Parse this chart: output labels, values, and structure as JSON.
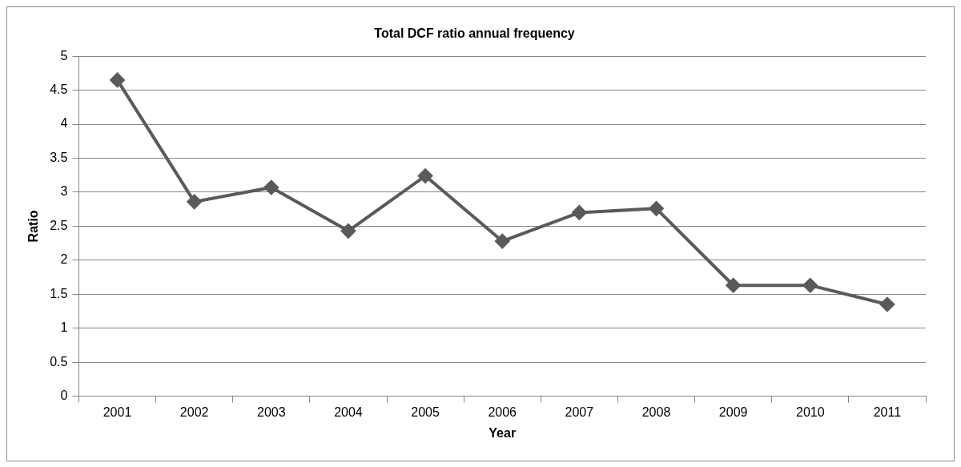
{
  "chart_data": {
    "type": "line",
    "title": "Total DCF ratio annual frequency",
    "xlabel": "Year",
    "ylabel": "Ratio",
    "categories": [
      "2001",
      "2002",
      "2003",
      "2004",
      "2005",
      "2006",
      "2007",
      "2008",
      "2009",
      "2010",
      "2011"
    ],
    "series": [
      {
        "color": "#5a5a5a",
        "values": [
          4.65,
          2.86,
          3.07,
          2.43,
          3.24,
          2.28,
          2.7,
          2.76,
          1.63,
          1.63,
          1.35
        ]
      }
    ],
    "ylim": [
      0,
      5
    ],
    "yticks": [
      0,
      0.5,
      1,
      1.5,
      2,
      2.5,
      3,
      3.5,
      4,
      4.5,
      5
    ],
    "grid": "y",
    "marker": "diamond",
    "line_style": "solid"
  }
}
